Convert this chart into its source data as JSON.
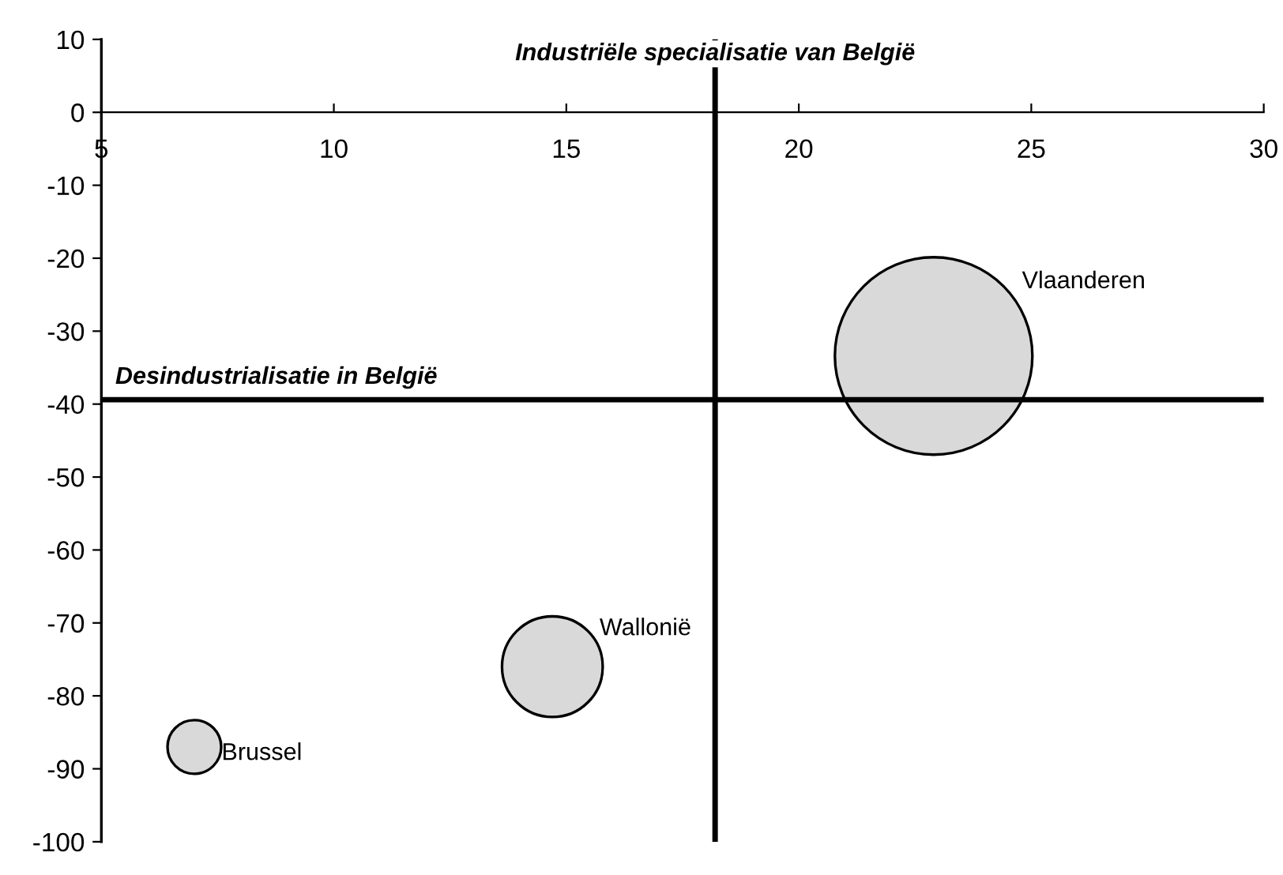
{
  "chart_data": {
    "type": "bubble",
    "x": [
      22.9,
      14.7,
      7.0
    ],
    "values": [
      -33.4,
      -76,
      -87
    ],
    "sizes": [
      1,
      0.26,
      0.074
    ],
    "colors": [
      "#d9d9d9",
      "#d9d9d9",
      "#d9d9d9"
    ],
    "annotations": [
      "Vlaanderen",
      "Wallonië",
      "Brussel"
    ],
    "ref_lines": [
      {
        "axis": "y",
        "value": -39.4,
        "label": "Desindustrialisatie in België",
        "color": "#000000"
      },
      {
        "axis": "x",
        "value": 18.2,
        "label": "Industriële specialisatie van België",
        "color": "#000000"
      }
    ],
    "xlim": [
      5,
      30
    ],
    "xticks": [
      5,
      10,
      15,
      20,
      25,
      30
    ],
    "ylim": [
      -100,
      10
    ],
    "yticks": [
      -100,
      -90,
      -80,
      -70,
      -60,
      -50,
      -40,
      -30,
      -20,
      -10,
      0,
      10
    ],
    "grid": false
  }
}
